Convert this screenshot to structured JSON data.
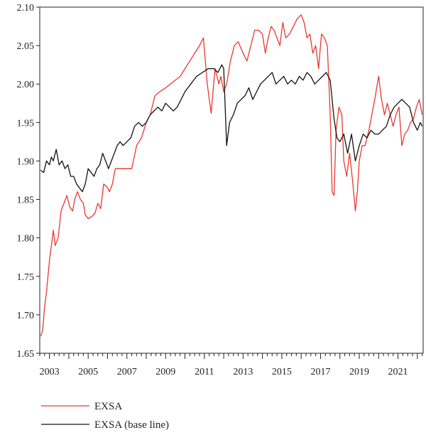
{
  "chart_data": {
    "type": "line",
    "title": "",
    "xlabel": "",
    "ylabel": "",
    "xlim": [
      2002.5,
      2022.3
    ],
    "ylim": [
      1.65,
      2.1
    ],
    "grid": false,
    "legend_position": "bottom-left",
    "y_ticks": [
      "1.65",
      "1.70",
      "1.75",
      "1.80",
      "1.85",
      "1.90",
      "1.95",
      "2.00",
      "2.05",
      "2.10"
    ],
    "x_ticks": [
      "2003",
      "2005",
      "2007",
      "2009",
      "2011",
      "2013",
      "2015",
      "2017",
      "2019",
      "2021"
    ],
    "series": [
      {
        "name": "EXSA",
        "color": "#e8392f",
        "x": [
          2002.55,
          2002.65,
          2002.75,
          2002.85,
          2003.0,
          2003.1,
          2003.2,
          2003.3,
          2003.45,
          2003.6,
          2003.75,
          2003.9,
          2004.05,
          2004.2,
          2004.3,
          2004.45,
          2004.6,
          2004.75,
          2004.85,
          2005.0,
          2005.2,
          2005.35,
          2005.5,
          2005.65,
          2005.8,
          2006.0,
          2006.1,
          2006.25,
          2006.4,
          2006.55,
          2006.75,
          2007.0,
          2007.25,
          2007.5,
          2007.75,
          2008.0,
          2008.2,
          2008.45,
          2008.7,
          2009.0,
          2009.25,
          2009.5,
          2009.75,
          2010.0,
          2010.25,
          2010.5,
          2010.75,
          2010.95,
          2011.15,
          2011.35,
          2011.55,
          2011.75,
          2011.85,
          2012.0,
          2012.15,
          2012.35,
          2012.55,
          2012.75,
          2013.0,
          2013.2,
          2013.4,
          2013.6,
          2013.8,
          2014.0,
          2014.15,
          2014.3,
          2014.45,
          2014.6,
          2014.75,
          2014.9,
          2015.05,
          2015.2,
          2015.4,
          2015.6,
          2015.8,
          2016.0,
          2016.15,
          2016.3,
          2016.45,
          2016.6,
          2016.75,
          2016.9,
          2017.05,
          2017.2,
          2017.35,
          2017.5,
          2017.6,
          2017.7,
          2017.8,
          2017.95,
          2018.1,
          2018.2,
          2018.35,
          2018.5,
          2018.65,
          2018.8,
          2018.9,
          2019.0,
          2019.15,
          2019.3,
          2019.5,
          2019.65,
          2019.8,
          2020.0,
          2020.15,
          2020.3,
          2020.45,
          2020.6,
          2020.75,
          2020.9,
          2021.05,
          2021.2,
          2021.35,
          2021.5,
          2021.65,
          2021.8,
          2021.95,
          2022.1,
          2022.25
        ],
        "values": [
          1.672,
          1.68,
          1.71,
          1.73,
          1.77,
          1.79,
          1.81,
          1.79,
          1.8,
          1.835,
          1.845,
          1.855,
          1.84,
          1.835,
          1.85,
          1.86,
          1.85,
          1.845,
          1.83,
          1.825,
          1.828,
          1.832,
          1.845,
          1.838,
          1.87,
          1.865,
          1.86,
          1.87,
          1.89,
          1.89,
          1.89,
          1.89,
          1.89,
          1.92,
          1.93,
          1.95,
          1.96,
          1.985,
          1.99,
          1.995,
          2.0,
          2.005,
          2.01,
          2.02,
          2.03,
          2.04,
          2.05,
          2.06,
          2.0,
          1.962,
          2.02,
          2.0,
          2.01,
          1.99,
          2.0,
          2.03,
          2.05,
          2.055,
          2.04,
          2.03,
          2.05,
          2.07,
          2.07,
          2.065,
          2.04,
          2.06,
          2.075,
          2.07,
          2.06,
          2.05,
          2.08,
          2.06,
          2.065,
          2.075,
          2.085,
          2.09,
          2.08,
          2.06,
          2.065,
          2.04,
          2.05,
          2.02,
          2.065,
          2.06,
          2.05,
          1.96,
          1.86,
          1.855,
          1.94,
          1.97,
          1.96,
          1.9,
          1.88,
          1.91,
          1.875,
          1.835,
          1.86,
          1.9,
          1.92,
          1.92,
          1.94,
          1.96,
          1.98,
          2.01,
          1.98,
          1.96,
          1.975,
          1.96,
          1.945,
          1.96,
          1.97,
          1.92,
          1.935,
          1.94,
          1.95,
          1.955,
          1.97,
          1.98,
          1.96
        ]
      },
      {
        "name": "EXSA (base line)",
        "color": "#111111",
        "x": [
          2002.55,
          2002.7,
          2002.85,
          2003.0,
          2003.1,
          2003.2,
          2003.35,
          2003.5,
          2003.65,
          2003.8,
          2003.95,
          2004.1,
          2004.25,
          2004.4,
          2004.55,
          2004.7,
          2004.85,
          2005.0,
          2005.15,
          2005.3,
          2005.45,
          2005.6,
          2005.75,
          2005.9,
          2006.05,
          2006.2,
          2006.35,
          2006.5,
          2006.65,
          2006.8,
          2007.0,
          2007.2,
          2007.4,
          2007.6,
          2007.8,
          2008.0,
          2008.2,
          2008.4,
          2008.6,
          2008.8,
          2009.0,
          2009.2,
          2009.4,
          2009.6,
          2009.8,
          2010.0,
          2010.3,
          2010.6,
          2010.9,
          2011.2,
          2011.5,
          2011.7,
          2011.8,
          2011.9,
          2012.0,
          2012.15,
          2012.3,
          2012.5,
          2012.7,
          2012.9,
          2013.1,
          2013.3,
          2013.5,
          2013.7,
          2013.9,
          2014.1,
          2014.3,
          2014.5,
          2014.7,
          2014.9,
          2015.1,
          2015.3,
          2015.5,
          2015.7,
          2015.9,
          2016.1,
          2016.3,
          2016.5,
          2016.7,
          2016.9,
          2017.1,
          2017.3,
          2017.5,
          2017.6,
          2017.7,
          2017.85,
          2018.0,
          2018.2,
          2018.4,
          2018.6,
          2018.8,
          2019.0,
          2019.2,
          2019.4,
          2019.6,
          2019.8,
          2020.0,
          2020.2,
          2020.4,
          2020.6,
          2020.8,
          2021.0,
          2021.2,
          2021.4,
          2021.6,
          2021.8,
          2022.0,
          2022.15,
          2022.25
        ],
        "values": [
          1.888,
          1.885,
          1.9,
          1.895,
          1.905,
          1.9,
          1.915,
          1.895,
          1.9,
          1.89,
          1.895,
          1.88,
          1.88,
          1.87,
          1.865,
          1.86,
          1.87,
          1.89,
          1.885,
          1.88,
          1.89,
          1.895,
          1.91,
          1.9,
          1.89,
          1.9,
          1.91,
          1.92,
          1.925,
          1.92,
          1.925,
          1.93,
          1.945,
          1.95,
          1.945,
          1.95,
          1.96,
          1.965,
          1.97,
          1.965,
          1.975,
          1.97,
          1.965,
          1.97,
          1.98,
          1.99,
          2.0,
          2.01,
          2.015,
          2.02,
          2.02,
          2.015,
          2.02,
          2.025,
          2.02,
          1.92,
          1.95,
          1.96,
          1.975,
          1.98,
          1.985,
          1.995,
          1.98,
          1.99,
          2.0,
          2.005,
          2.01,
          2.015,
          2.0,
          2.005,
          2.01,
          2.0,
          2.005,
          2.0,
          2.01,
          2.005,
          2.015,
          2.01,
          2.0,
          2.005,
          2.01,
          2.015,
          2.005,
          1.98,
          1.955,
          1.93,
          1.925,
          1.935,
          1.91,
          1.935,
          1.9,
          1.92,
          1.935,
          1.93,
          1.94,
          1.935,
          1.935,
          1.94,
          1.945,
          1.96,
          1.97,
          1.975,
          1.98,
          1.975,
          1.97,
          1.95,
          1.94,
          1.95,
          1.945
        ]
      }
    ]
  }
}
